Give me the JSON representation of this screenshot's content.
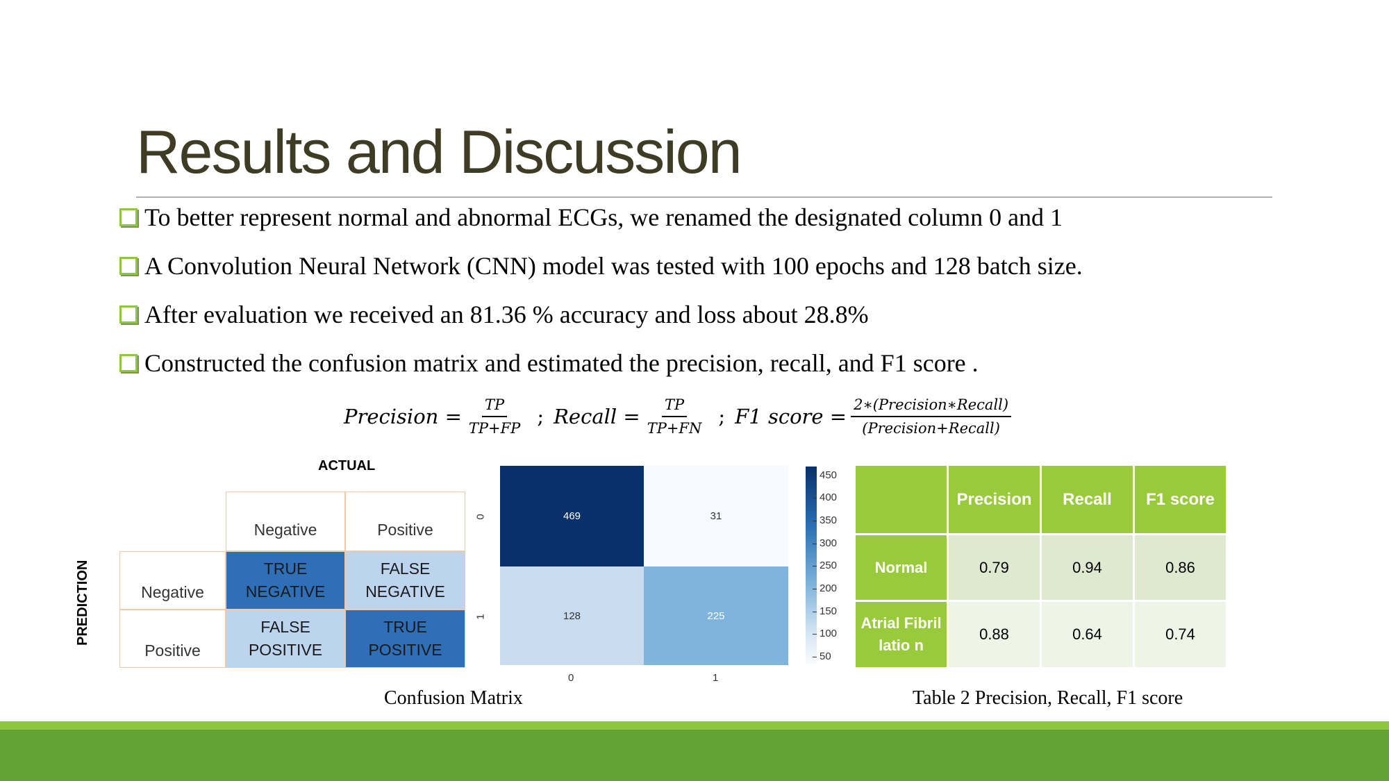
{
  "slide": {
    "title": "Results and Discussion",
    "bullets": [
      " To better represent normal and abnormal ECGs, we renamed the designated column 0 and 1",
      "A Convolution Neural Network (CNN) model was tested with 100 epochs and 128 batch size.",
      "After evaluation we received an 81.36 % accuracy and loss about 28.8%",
      " Constructed the confusion matrix and estimated the precision, recall, and F1 score ."
    ],
    "formula": {
      "precision_lhs": "Precision =",
      "precision_num": "TP",
      "precision_den": "TP+FP",
      "sep1": ";",
      "recall_lhs": "Recall =",
      "recall_num": "TP",
      "recall_den": "TP+FN",
      "sep2": ";",
      "f1_lhs": "F1 score =",
      "f1_num": "2∗(Precision∗Recall)",
      "f1_den": "(Precision+Recall)"
    },
    "confusion_table": {
      "actual_label": "ACTUAL",
      "prediction_label": "PREDICTION",
      "col_headers": [
        "Negative",
        "Positive"
      ],
      "row_headers": [
        "Negative",
        "Positive"
      ],
      "cells": [
        [
          "TRUE NEGATIVE",
          "FALSE NEGATIVE"
        ],
        [
          "FALSE POSITIVE",
          "TRUE POSITIVE"
        ]
      ]
    },
    "confusion_caption": "Confusion Matrix",
    "heatmap": {
      "values": [
        [
          "469",
          "31"
        ],
        [
          "128",
          "225"
        ]
      ],
      "x_ticks": [
        "0",
        "1"
      ],
      "y_ticks": [
        "0",
        "1"
      ],
      "colorbar_ticks": [
        "450",
        "400",
        "350",
        "300",
        "250",
        "200",
        "150",
        "100",
        "50"
      ],
      "colors": {
        "dark": "#08306b",
        "lightest": "#f7fbff",
        "light": "#c9dcef",
        "mid": "#7fb5dc"
      }
    },
    "metrics_table": {
      "headers": [
        "",
        "Precision",
        "Recall",
        "F1 score"
      ],
      "rows": [
        {
          "label": "Normal",
          "values": [
            "0.79",
            "0.94",
            "0.86"
          ]
        },
        {
          "label": "Atrial Fibrillatio n",
          "values": [
            "0.88",
            "0.64",
            "0.74"
          ]
        }
      ]
    },
    "metrics_caption": "Table 2 Precision, Recall, F1 score",
    "colors": {
      "title": "#3f3c26",
      "accent_green": "#8dc63f",
      "footer_green": "#63a335"
    }
  }
}
